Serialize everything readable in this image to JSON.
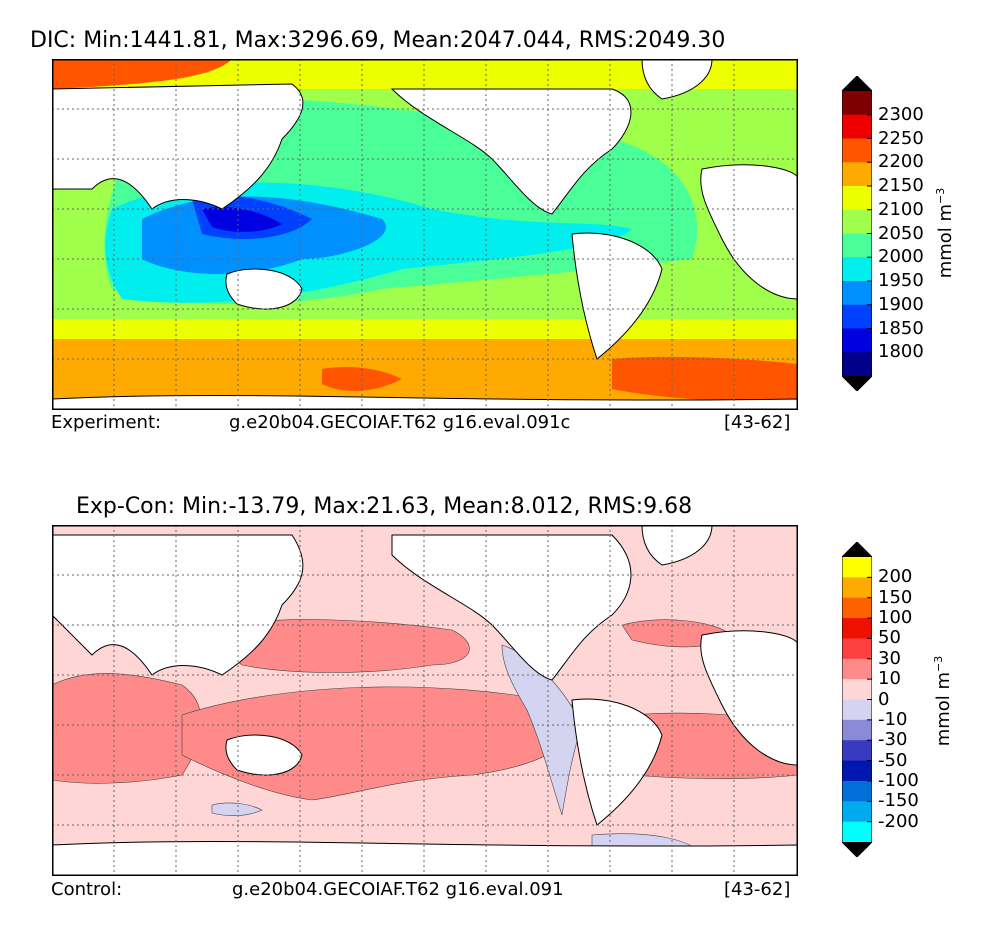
{
  "panel_top": {
    "title": "DIC: Min:1441.81, Max:3296.69, Mean:2047.044, RMS:2049.30",
    "footer_label": "Experiment:",
    "footer_run": "g.e20b04.GECOIAF.T62 g16.eval.091c",
    "footer_years": "[43-62]",
    "colorbar": {
      "units": "mmol m",
      "units_exp": "−3",
      "ticks": [
        "2300",
        "2250",
        "2200",
        "2150",
        "2100",
        "2050",
        "2000",
        "1950",
        "1900",
        "1850",
        "1800"
      ],
      "colors": [
        "#7f0000",
        "#ee0000",
        "#ff5500",
        "#ffaa00",
        "#eeff00",
        "#a0ff4a",
        "#4aff98",
        "#00eeee",
        "#0090ff",
        "#0040ff",
        "#0000e0",
        "#00008a"
      ],
      "over_color": "#000000",
      "under_color": "#000000"
    }
  },
  "panel_bottom": {
    "title": "Exp-Con: Min:-13.79, Max:21.63, Mean:8.012, RMS:9.68",
    "footer_label": "Control:",
    "footer_run": "g.e20b04.GECOIAF.T62 g16.eval.091",
    "footer_years": "[43-62]",
    "colorbar": {
      "units": "mmol m",
      "units_exp": "−3",
      "ticks": [
        "200",
        "150",
        "100",
        "50",
        "30",
        "10",
        "0",
        "-10",
        "-30",
        "-50",
        "-100",
        "-150",
        "-200"
      ],
      "colors": [
        "#ffff00",
        "#ffaa00",
        "#ff6000",
        "#ee1100",
        "#ff4040",
        "#ff8a8a",
        "#ffd6d6",
        "#d4d4f0",
        "#8a8ad8",
        "#3a3ac0",
        "#0018b0",
        "#0070d8",
        "#00aaee",
        "#00ffff"
      ],
      "over_color": "#000000",
      "under_color": "#000000"
    }
  }
}
